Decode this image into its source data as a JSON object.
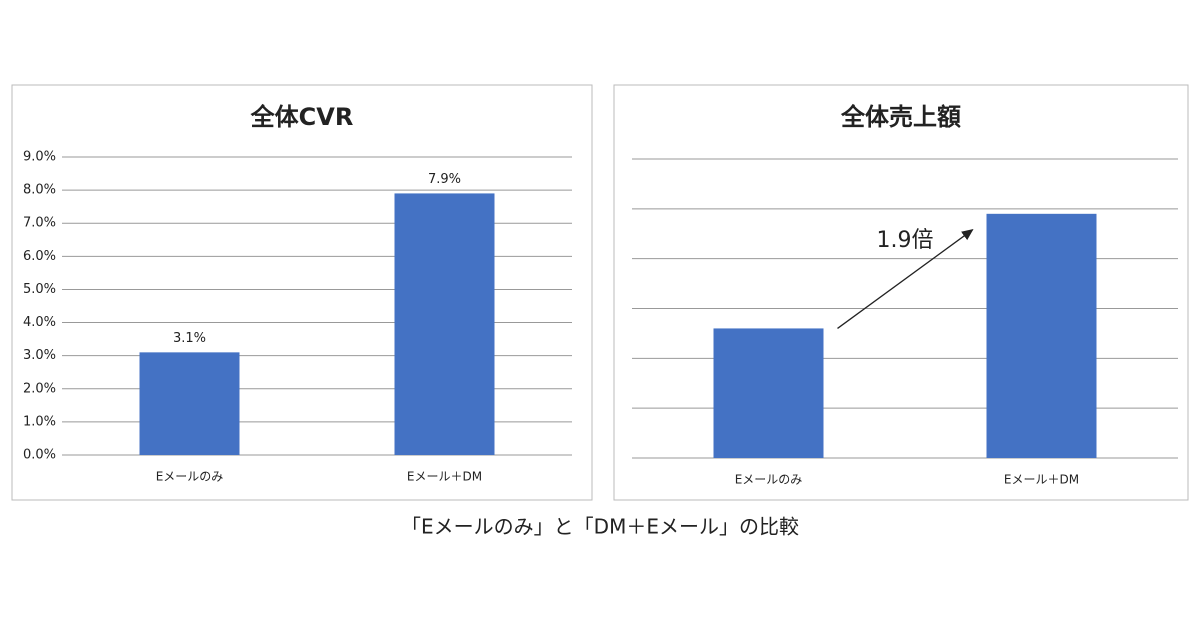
{
  "chart_data": [
    {
      "type": "bar",
      "title": "全体CVR",
      "categories": [
        "Eメールのみ",
        "Eメール＋DM"
      ],
      "values": [
        3.1,
        7.9
      ],
      "value_labels": [
        "3.1%",
        "7.9%"
      ],
      "color": "#4472c4",
      "grid": true,
      "ylim": [
        0,
        9
      ],
      "yticks": [
        {
          "value": 0,
          "label": "0.0%"
        },
        {
          "value": 1,
          "label": "1.0%"
        },
        {
          "value": 2,
          "label": "2.0%"
        },
        {
          "value": 3,
          "label": "3.0%"
        },
        {
          "value": 4,
          "label": "4.0%"
        },
        {
          "value": 5,
          "label": "5.0%"
        },
        {
          "value": 6,
          "label": "6.0%"
        },
        {
          "value": 7,
          "label": "7.0%"
        },
        {
          "value": 8,
          "label": "8.0%"
        },
        {
          "value": 9,
          "label": "9.0%"
        }
      ]
    },
    {
      "type": "bar",
      "title": "全体売上額",
      "categories": [
        "Eメールのみ",
        "Eメール＋DM"
      ],
      "values": [
        2.6,
        4.9
      ],
      "color": "#4472c4",
      "grid": true,
      "ylim": [
        0,
        6
      ],
      "yticks": [
        0,
        1,
        2,
        3,
        4,
        5,
        6
      ],
      "annotation": "1.9倍"
    }
  ],
  "caption": "「Eメールのみ」と「DM＋Eメール」の比較"
}
